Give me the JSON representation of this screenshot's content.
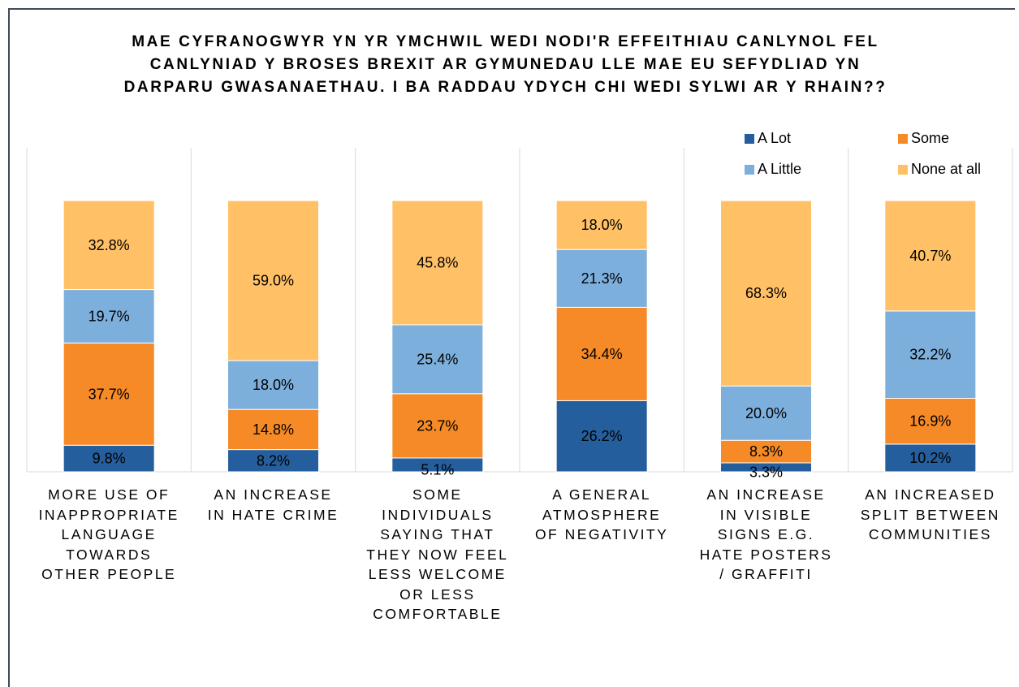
{
  "chart_data": {
    "type": "bar",
    "stacked": true,
    "title": "MAE CYFRANOGWYR YN YR YMCHWIL WEDI NODI'R EFFEITHIAU CANLYNOL FEL CANLYNIAD Y BROSES BREXIT AR GYMUNEDAU LLE MAE EU SEFYDLIAD YN DARPARU GWASANAETHAU. I BA RADDAU YDYCH CHI WEDI SYLWI AR Y RHAIN??",
    "categories": [
      "MORE USE OF INAPPROPRIATE LANGUAGE TOWARDS OTHER PEOPLE",
      "AN INCREASE IN HATE CRIME",
      "SOME INDIVIDUALS SAYING THAT THEY NOW FEEL LESS WELCOME OR LESS COMFORTABLE",
      "A GENERAL ATMOSPHERE OF NEGATIVITY",
      "AN INCREASE IN VISIBLE SIGNS E.G. HATE POSTERS / GRAFFITI",
      "AN INCREASED SPLIT BETWEEN COMMUNITIES"
    ],
    "category_lines": [
      [
        "MORE USE OF",
        "INAPPROPRIATE",
        "LANGUAGE",
        "TOWARDS",
        "OTHER PEOPLE"
      ],
      [
        "AN INCREASE",
        "IN HATE CRIME"
      ],
      [
        "SOME",
        "INDIVIDUALS",
        "SAYING THAT",
        "THEY NOW FEEL",
        "LESS WELCOME",
        "OR LESS",
        "COMFORTABLE"
      ],
      [
        "A GENERAL",
        "ATMOSPHERE",
        "OF NEGATIVITY"
      ],
      [
        "AN INCREASE",
        "IN VISIBLE",
        "SIGNS E.G.",
        "HATE POSTERS",
        "/ GRAFFITI"
      ],
      [
        "AN INCREASED",
        "SPLIT BETWEEN",
        "COMMUNITIES"
      ]
    ],
    "series": [
      {
        "name": "A Lot",
        "color": "#255E9D",
        "values": [
          9.8,
          8.2,
          5.1,
          26.2,
          3.3,
          10.2
        ],
        "labels": [
          "9.8%",
          "8.2%",
          "5.1%",
          "26.2%",
          "3.3%",
          "10.2%"
        ]
      },
      {
        "name": "Some",
        "color": "#F58A27",
        "values": [
          37.7,
          14.8,
          23.7,
          34.4,
          8.3,
          16.9
        ],
        "labels": [
          "37.7%",
          "14.8%",
          "23.7%",
          "34.4%",
          "8.3%",
          "16.9%"
        ]
      },
      {
        "name": "A Little",
        "color": "#7DAFDC",
        "values": [
          19.7,
          18.0,
          25.4,
          21.3,
          20.0,
          32.2
        ],
        "labels": [
          "19.7%",
          "18.0%",
          "25.4%",
          "21.3%",
          "20.0%",
          "32.2%"
        ]
      },
      {
        "name": "None at all",
        "color": "#FFC066",
        "values": [
          32.8,
          59.0,
          45.8,
          18.0,
          68.3,
          40.7
        ],
        "labels": [
          "32.8%",
          "59.0%",
          "45.8%",
          "18.0%",
          "68.3%",
          "40.7%"
        ]
      }
    ],
    "ylim": [
      0,
      100
    ],
    "grid": "vertical category separators",
    "legend": "top-right"
  }
}
